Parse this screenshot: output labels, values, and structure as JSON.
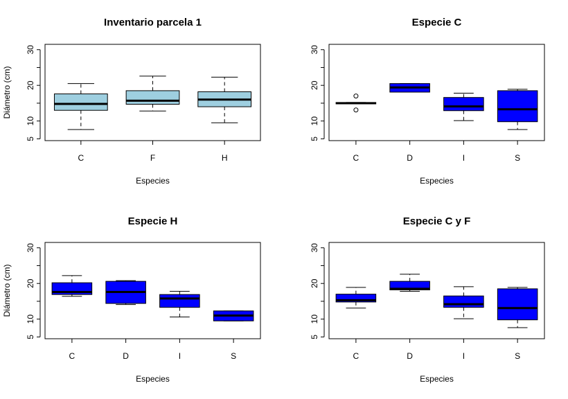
{
  "colors": {
    "light": "#9ecfe0",
    "dark": "#0000ff",
    "median": "#000000",
    "whisker": "#000000"
  },
  "chart_data": [
    {
      "type": "boxplot",
      "title": "Inventario parcela 1",
      "xlabel": "Especies",
      "ylabel": "Diámetro (cm)",
      "ylim": [
        4.5,
        31.5
      ],
      "yticks": [
        5,
        10,
        20,
        30
      ],
      "fill": "light",
      "categories": [
        "C",
        "F",
        "H"
      ],
      "boxes": [
        {
          "min": 7.6,
          "q1": 13.0,
          "median": 14.8,
          "q3": 17.6,
          "max": 20.5,
          "outliers": []
        },
        {
          "min": 12.8,
          "q1": 14.7,
          "median": 15.7,
          "q3": 18.5,
          "max": 22.6,
          "outliers": []
        },
        {
          "min": 9.5,
          "q1": 14.0,
          "median": 16.0,
          "q3": 18.2,
          "max": 22.3,
          "outliers": []
        }
      ]
    },
    {
      "type": "boxplot",
      "title": "Especie C",
      "xlabel": "Especies",
      "ylabel": "",
      "ylim": [
        4.5,
        31.5
      ],
      "yticks": [
        5,
        10,
        20,
        30
      ],
      "fill": "dark",
      "categories": [
        "C",
        "D",
        "I",
        "S"
      ],
      "boxes": [
        {
          "min": 14.8,
          "q1": 14.8,
          "median": 15.0,
          "q3": 15.2,
          "max": 15.2,
          "outliers": [
            17.0,
            13.1
          ]
        },
        {
          "min": 18.1,
          "q1": 18.1,
          "median": 19.4,
          "q3": 20.5,
          "max": 20.5,
          "outliers": []
        },
        {
          "min": 10.1,
          "q1": 12.9,
          "median": 14.1,
          "q3": 16.6,
          "max": 17.8,
          "outliers": []
        },
        {
          "min": 7.6,
          "q1": 9.8,
          "median": 13.3,
          "q3": 18.5,
          "max": 18.9,
          "outliers": []
        }
      ]
    },
    {
      "type": "boxplot",
      "title": "Especie H",
      "xlabel": "Especies",
      "ylabel": "Diámetro (cm)",
      "ylim": [
        4.5,
        31.5
      ],
      "yticks": [
        5,
        10,
        20,
        30
      ],
      "fill": "dark",
      "categories": [
        "C",
        "D",
        "I",
        "S"
      ],
      "boxes": [
        {
          "min": 16.4,
          "q1": 16.9,
          "median": 17.6,
          "q3": 20.2,
          "max": 22.2,
          "outliers": []
        },
        {
          "min": 14.1,
          "q1": 14.4,
          "median": 17.6,
          "q3": 20.6,
          "max": 20.8,
          "outliers": []
        },
        {
          "min": 10.6,
          "q1": 13.3,
          "median": 15.8,
          "q3": 16.9,
          "max": 17.8,
          "outliers": []
        },
        {
          "min": 9.5,
          "q1": 9.5,
          "median": 11.0,
          "q3": 12.3,
          "max": 12.3,
          "outliers": []
        }
      ]
    },
    {
      "type": "boxplot",
      "title": "Especie C y F",
      "xlabel": "Especies",
      "ylabel": "",
      "ylim": [
        4.5,
        31.5
      ],
      "yticks": [
        5,
        10,
        20,
        30
      ],
      "fill": "dark",
      "categories": [
        "C",
        "D",
        "I",
        "S"
      ],
      "boxes": [
        {
          "min": 13.1,
          "q1": 14.8,
          "median": 15.3,
          "q3": 17.0,
          "max": 18.9,
          "outliers": []
        },
        {
          "min": 17.8,
          "q1": 18.2,
          "median": 18.5,
          "q3": 20.6,
          "max": 22.6,
          "outliers": []
        },
        {
          "min": 10.1,
          "q1": 13.3,
          "median": 14.2,
          "q3": 16.5,
          "max": 19.1,
          "outliers": []
        },
        {
          "min": 7.6,
          "q1": 9.8,
          "median": 13.1,
          "q3": 18.5,
          "max": 18.9,
          "outliers": []
        }
      ]
    }
  ]
}
